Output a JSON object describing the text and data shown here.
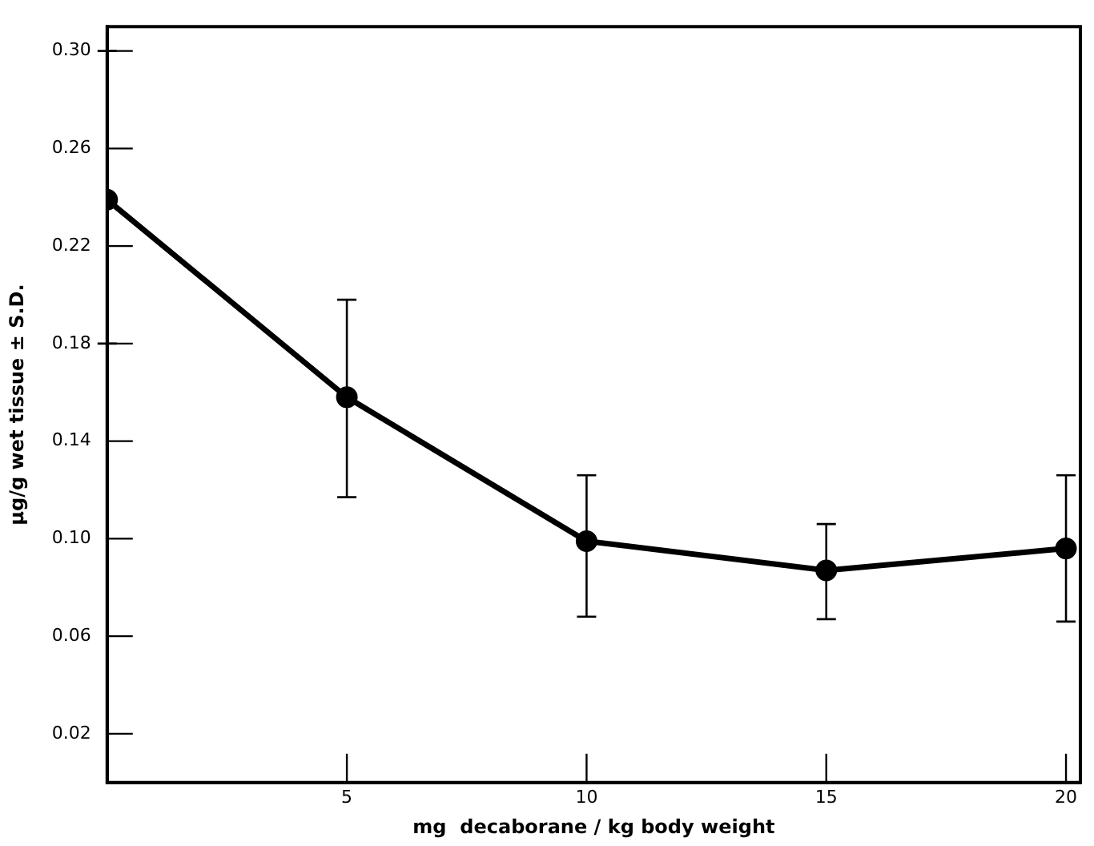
{
  "chart_data": {
    "type": "line",
    "xlabel": "mg  decaborane / kg body weight",
    "ylabel": "μg/g wet tissue ± S.D.",
    "x": [
      0,
      5,
      10,
      15,
      20
    ],
    "series": [
      {
        "color": "#000000",
        "values": [
          0.239,
          0.158,
          0.099,
          0.087,
          0.096
        ],
        "errors": [
          [
            0.18,
            0.3
          ],
          [
            0.117,
            0.198
          ],
          [
            0.068,
            0.126
          ],
          [
            0.067,
            0.106
          ],
          [
            0.066,
            0.126
          ]
        ]
      }
    ],
    "xlim": [
      0,
      20.3
    ],
    "xticks": [
      5,
      10,
      15,
      20
    ],
    "ylim": [
      0,
      0.31
    ],
    "yticks": [
      {
        "value": 0.02,
        "label": "0.02"
      },
      {
        "value": 0.06,
        "label": "0.06"
      },
      {
        "value": 0.1,
        "label": "0.10"
      },
      {
        "value": 0.14,
        "label": "0.14"
      },
      {
        "value": 0.18,
        "label": "0.18"
      },
      {
        "value": 0.22,
        "label": "0.22"
      },
      {
        "value": 0.26,
        "label": "0.26"
      },
      {
        "value": 0.3,
        "label": "0.30"
      }
    ],
    "grid": false,
    "legend": false,
    "marker": "circle",
    "line_style": "solid"
  }
}
